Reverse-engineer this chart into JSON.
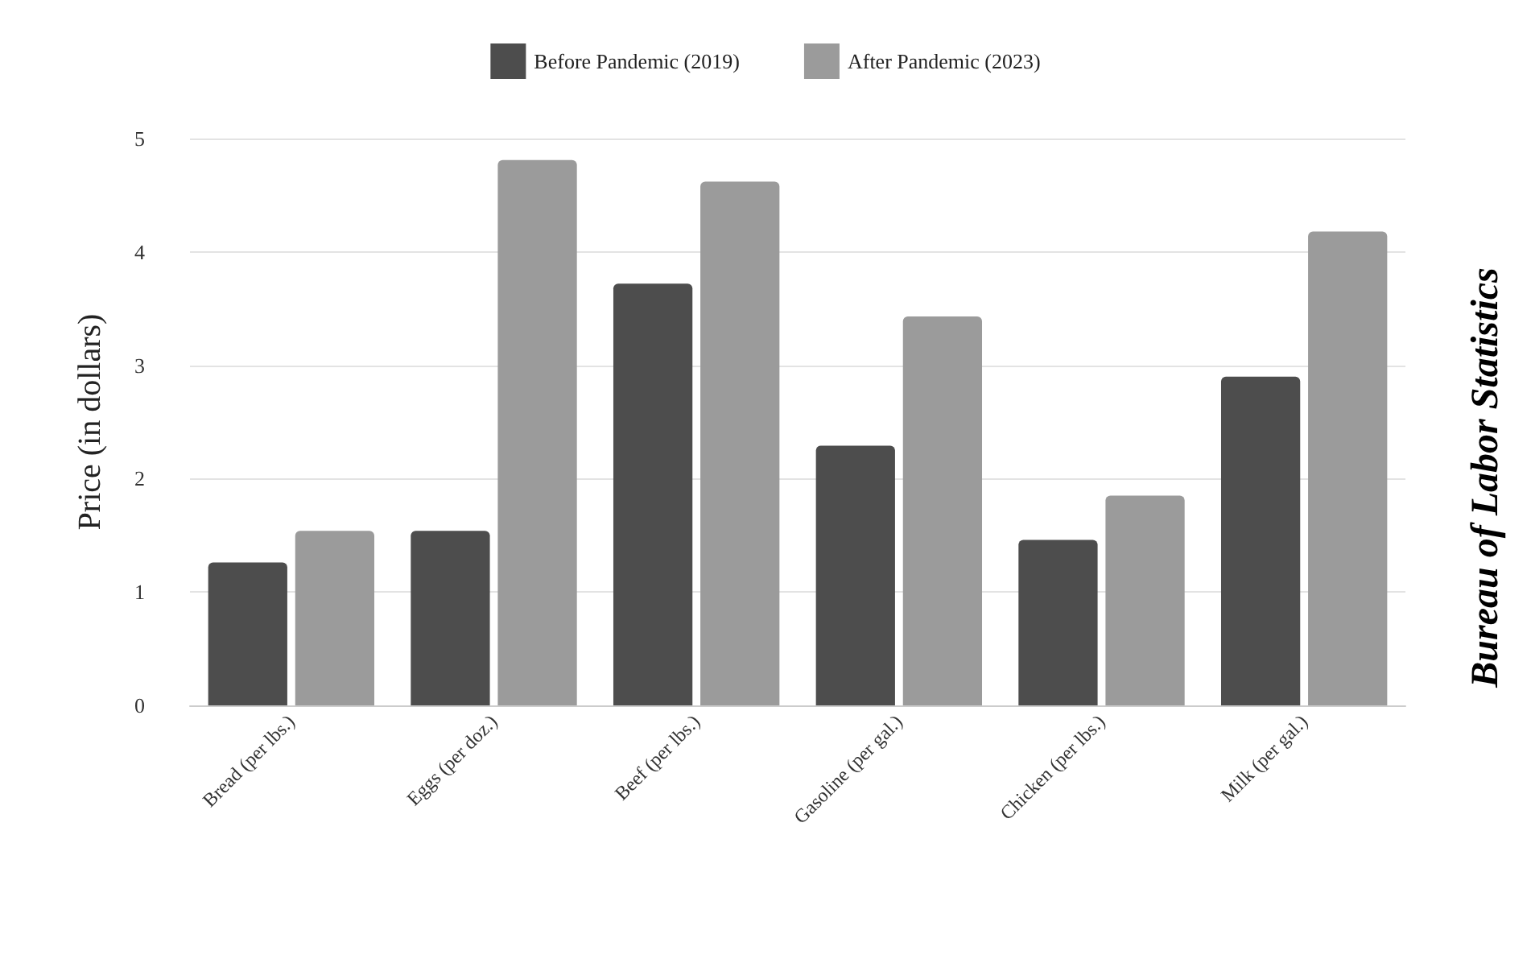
{
  "chart_data": {
    "type": "bar",
    "categories": [
      "Bread (per lbs.)",
      "Eggs (per doz.)",
      "Beef (per lbs.)",
      "Gasoline (per gal.)",
      "Chicken (per lbs.)",
      "Milk (per gal.)"
    ],
    "series": [
      {
        "name": "Before Pandemic (2019)",
        "color": "#4d4d4d",
        "values": [
          1.26,
          1.54,
          3.72,
          2.29,
          1.46,
          2.9
        ]
      },
      {
        "name": "After Pandemic (2023)",
        "color": "#9b9b9b",
        "values": [
          1.54,
          4.81,
          4.62,
          3.43,
          1.85,
          4.18
        ]
      }
    ],
    "ylabel": "Price (in dollars)",
    "ylim": [
      0,
      5
    ],
    "yticks": [
      0,
      1,
      2,
      3,
      4,
      5
    ],
    "grid": "y",
    "legend": "top",
    "annotations": [
      "Bureau of Labor Statistics"
    ]
  }
}
